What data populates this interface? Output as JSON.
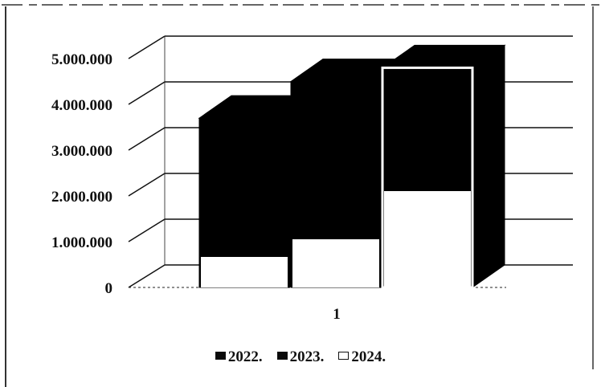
{
  "chart_data": {
    "type": "bar",
    "categories": [
      "1"
    ],
    "series": [
      {
        "name": "2022.",
        "values": [
          3700000
        ]
      },
      {
        "name": "2023.",
        "values": [
          4500000
        ]
      },
      {
        "name": "2024.",
        "values": [
          4800000
        ]
      }
    ],
    "y_ticks": [
      "0",
      "1.000.000",
      "2.000.000",
      "3.000.000",
      "4.000.000",
      "5.000.000"
    ],
    "ylim": [
      0,
      5000000
    ],
    "grid": true,
    "legend_position": "bottom",
    "style": "3d-column",
    "colors": {
      "2022.": "#0a0a0a",
      "2023.": "#0a0a0a",
      "2024.": "#ffffff",
      "axis": "#111111"
    }
  }
}
